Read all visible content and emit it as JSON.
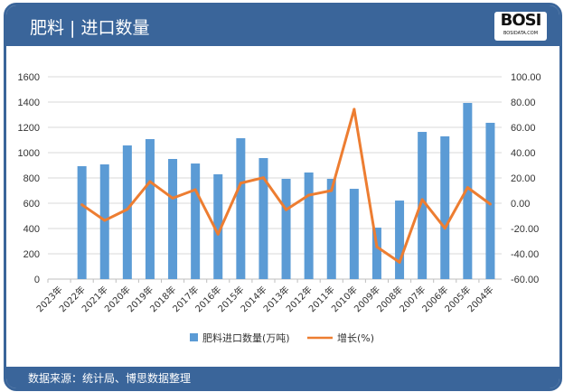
{
  "header": {
    "title": "肥料 | 进口数量",
    "logo_text": "BOSI",
    "logo_sub": "BOSIDATA.COM"
  },
  "footer": {
    "source": "数据来源：统计局、博思数据整理"
  },
  "colors": {
    "frame": "#3a659a",
    "bar": "#5b9bd5",
    "line": "#ed7d31"
  },
  "chart_data": {
    "type": "bar+line",
    "categories": [
      "2023年",
      "2022年",
      "2021年",
      "2020年",
      "2019年",
      "2018年",
      "2017年",
      "2016年",
      "2015年",
      "2014年",
      "2013年",
      "2012年",
      "2011年",
      "2010年",
      "2009年",
      "2008年",
      "2007年",
      "2006年",
      "2005年",
      "2004年"
    ],
    "series": [
      {
        "name": "肥料进口数量(万吨)",
        "type": "bar",
        "axis": "left",
        "values": [
          null,
          893,
          907,
          1057,
          1107,
          950,
          914,
          829,
          1114,
          957,
          793,
          843,
          793,
          714,
          407,
          621,
          1164,
          1129,
          1393,
          1236
        ]
      },
      {
        "name": "增长(%)",
        "type": "line",
        "axis": "right",
        "values": [
          null,
          -1.2,
          -13.6,
          -4.8,
          17.1,
          4.0,
          10.7,
          -24.5,
          15.9,
          20.2,
          -5.2,
          6.4,
          10.0,
          74.3,
          -34.5,
          -46.7,
          2.9,
          -19.8,
          12.4,
          -0.7
        ]
      }
    ],
    "left_axis": {
      "range": [
        0,
        1600
      ],
      "ticks": [
        "0",
        "200",
        "400",
        "600",
        "800",
        "1000",
        "1200",
        "1400",
        "1600"
      ]
    },
    "right_axis": {
      "range": [
        -60,
        100
      ],
      "ticks": [
        "-60.00",
        "-40.00",
        "-20.00",
        "0.00",
        "20.00",
        "40.00",
        "60.00",
        "80.00",
        "100.00"
      ]
    },
    "grid": true,
    "legend": "bottom"
  }
}
